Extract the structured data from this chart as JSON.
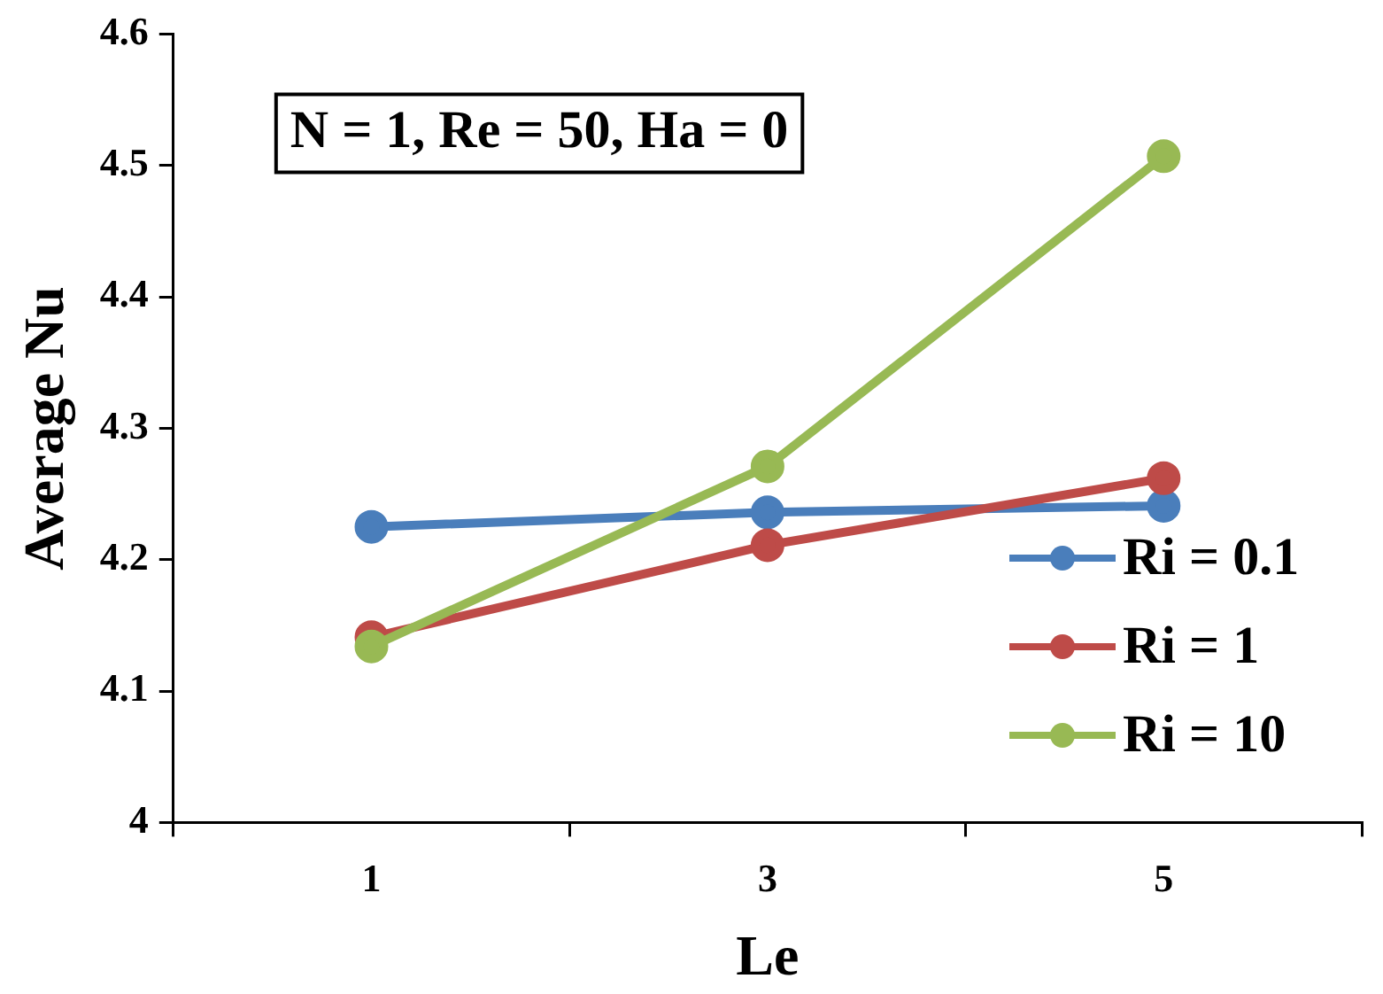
{
  "chart_data": {
    "type": "line",
    "xlabel": "Le",
    "ylabel": "Average Nu",
    "categories": [
      "1",
      "3",
      "5"
    ],
    "series": [
      {
        "name": "Ri = 0.1",
        "color": "#4a7ebb",
        "values": [
          4.225,
          4.236,
          4.241
        ]
      },
      {
        "name": "Ri = 1",
        "color": "#be4b48",
        "values": [
          4.141,
          4.211,
          4.262
        ]
      },
      {
        "name": "Ri = 10",
        "color": "#98b954",
        "values": [
          4.134,
          4.271,
          4.507
        ]
      }
    ],
    "ylim": [
      4,
      4.6
    ],
    "yticks": [
      4,
      4.1,
      4.2,
      4.3,
      4.4,
      4.5,
      4.6
    ],
    "grid": false,
    "legend": "right",
    "marker": "circle",
    "line_style": "solid",
    "annotations": [
      "N = 1, Re = 50, Ha = 0"
    ]
  }
}
